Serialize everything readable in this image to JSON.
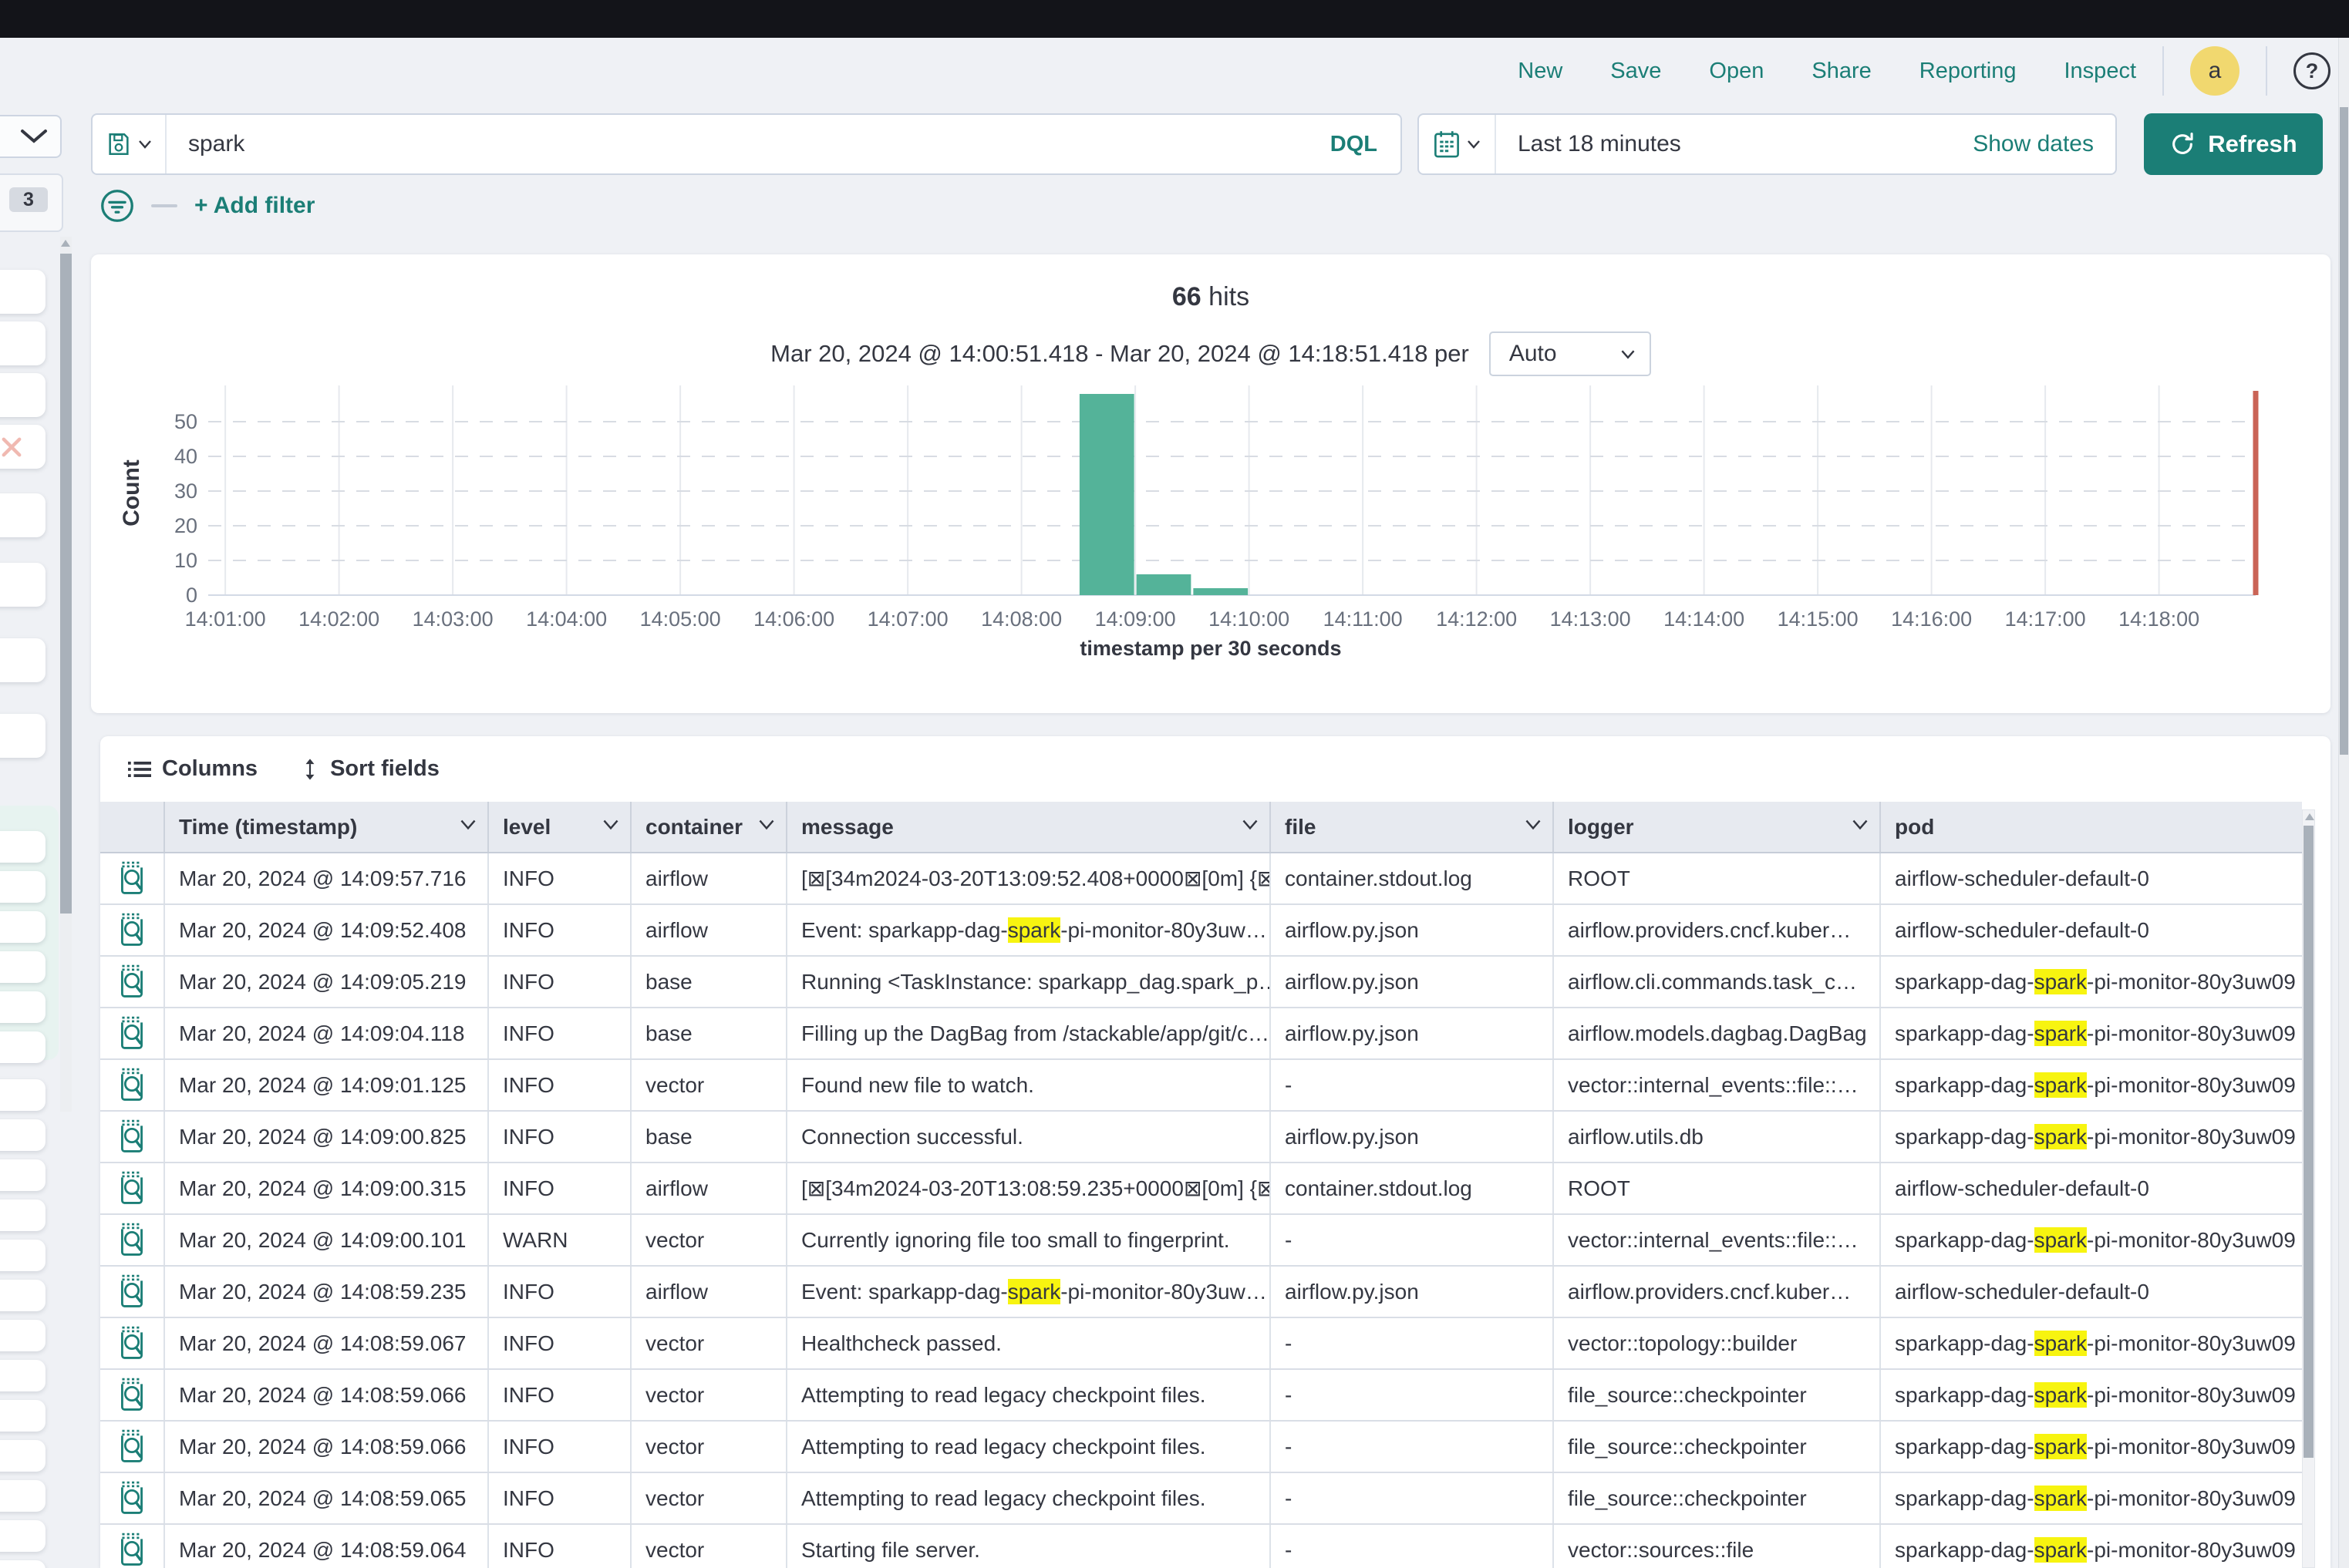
{
  "topnav": {
    "links": [
      "New",
      "Save",
      "Open",
      "Share",
      "Reporting",
      "Inspect"
    ],
    "avatar_initial": "a"
  },
  "sidebar": {
    "badge_count": "3"
  },
  "querybar": {
    "query": "spark",
    "language_label": "DQL",
    "time_range": "Last 18 minutes",
    "show_dates_label": "Show dates",
    "refresh_label": "Refresh",
    "add_filter_label": "+ Add filter"
  },
  "colors": {
    "accent": "#1b7e76",
    "bar": "#54B399",
    "time_marker": "#CA6456",
    "highlight": "#f7f410",
    "avatar": "#f1d86f"
  },
  "chart_data": {
    "type": "bar",
    "title_count": "66",
    "title_suffix": "hits",
    "range_label": "Mar 20, 2024 @ 14:00:51.418 - Mar 20, 2024 @ 14:18:51.418 per",
    "interval": "Auto",
    "ylabel": "Count",
    "xlabel": "timestamp per 30 seconds",
    "ylim": [
      0,
      60
    ],
    "y_ticks": [
      0,
      10,
      20,
      30,
      40,
      50
    ],
    "x_start": "14:00:51",
    "x_end": "14:18:51",
    "x_ticks": [
      "14:01:00",
      "14:02:00",
      "14:03:00",
      "14:04:00",
      "14:05:00",
      "14:06:00",
      "14:07:00",
      "14:08:00",
      "14:09:00",
      "14:10:00",
      "14:11:00",
      "14:12:00",
      "14:13:00",
      "14:14:00",
      "14:15:00",
      "14:16:00",
      "14:17:00",
      "14:18:00"
    ],
    "bucket_seconds": 30,
    "buckets": [
      {
        "time": "14:08:30",
        "count": 58
      },
      {
        "time": "14:09:00",
        "count": 6
      },
      {
        "time": "14:09:30",
        "count": 2
      }
    ],
    "now_marker_time": "14:18:51",
    "legend": "off",
    "grid": "on"
  },
  "table": {
    "toolbar": {
      "columns_label": "Columns",
      "sort_label": "Sort fields"
    },
    "headers": [
      {
        "key": "time",
        "label": "Time (timestamp)",
        "menu": true
      },
      {
        "key": "level",
        "label": "level",
        "menu": true
      },
      {
        "key": "container",
        "label": "container",
        "menu": true
      },
      {
        "key": "message",
        "label": "message",
        "menu": true
      },
      {
        "key": "file",
        "label": "file",
        "menu": true
      },
      {
        "key": "logger",
        "label": "logger",
        "menu": true
      },
      {
        "key": "pod",
        "label": "pod",
        "menu": false
      }
    ],
    "rows": [
      {
        "time": "Mar 20, 2024 @ 14:09:57.716",
        "level": "INFO",
        "container": "airflow",
        "message": "[⊠[34m2024-03-20T13:09:52.408+0000⊠[0m] {⊠…",
        "file": "container.stdout.log",
        "logger": "ROOT",
        "pod": "airflow-scheduler-default-0"
      },
      {
        "time": "Mar 20, 2024 @ 14:09:52.408",
        "level": "INFO",
        "container": "airflow",
        "message": "Event: sparkapp-dag-[[spark]]-pi-monitor-80y3uw…",
        "file": "airflow.py.json",
        "logger": "airflow.providers.cncf.kuber…",
        "pod": "airflow-scheduler-default-0"
      },
      {
        "time": "Mar 20, 2024 @ 14:09:05.219",
        "level": "INFO",
        "container": "base",
        "message": "Running <TaskInstance: sparkapp_dag.spark_p…",
        "file": "airflow.py.json",
        "logger": "airflow.cli.commands.task_c…",
        "pod": "sparkapp-dag-[[spark]]-pi-monitor-80y3uw09"
      },
      {
        "time": "Mar 20, 2024 @ 14:09:04.118",
        "level": "INFO",
        "container": "base",
        "message": "Filling up the DagBag from /stackable/app/git/c…",
        "file": "airflow.py.json",
        "logger": "airflow.models.dagbag.DagBag",
        "pod": "sparkapp-dag-[[spark]]-pi-monitor-80y3uw09"
      },
      {
        "time": "Mar 20, 2024 @ 14:09:01.125",
        "level": "INFO",
        "container": "vector",
        "message": "Found new file to watch.",
        "file": "-",
        "logger": "vector::internal_events::file::…",
        "pod": "sparkapp-dag-[[spark]]-pi-monitor-80y3uw09"
      },
      {
        "time": "Mar 20, 2024 @ 14:09:00.825",
        "level": "INFO",
        "container": "base",
        "message": "Connection successful.",
        "file": "airflow.py.json",
        "logger": "airflow.utils.db",
        "pod": "sparkapp-dag-[[spark]]-pi-monitor-80y3uw09"
      },
      {
        "time": "Mar 20, 2024 @ 14:09:00.315",
        "level": "INFO",
        "container": "airflow",
        "message": "[⊠[34m2024-03-20T13:08:59.235+0000⊠[0m] {⊠…",
        "file": "container.stdout.log",
        "logger": "ROOT",
        "pod": "airflow-scheduler-default-0"
      },
      {
        "time": "Mar 20, 2024 @ 14:09:00.101",
        "level": "WARN",
        "container": "vector",
        "message": "Currently ignoring file too small to fingerprint.",
        "file": "-",
        "logger": "vector::internal_events::file::…",
        "pod": "sparkapp-dag-[[spark]]-pi-monitor-80y3uw09"
      },
      {
        "time": "Mar 20, 2024 @ 14:08:59.235",
        "level": "INFO",
        "container": "airflow",
        "message": "Event: sparkapp-dag-[[spark]]-pi-monitor-80y3uw…",
        "file": "airflow.py.json",
        "logger": "airflow.providers.cncf.kuber…",
        "pod": "airflow-scheduler-default-0"
      },
      {
        "time": "Mar 20, 2024 @ 14:08:59.067",
        "level": "INFO",
        "container": "vector",
        "message": "Healthcheck passed.",
        "file": "-",
        "logger": "vector::topology::builder",
        "pod": "sparkapp-dag-[[spark]]-pi-monitor-80y3uw09"
      },
      {
        "time": "Mar 20, 2024 @ 14:08:59.066",
        "level": "INFO",
        "container": "vector",
        "message": "Attempting to read legacy checkpoint files.",
        "file": "-",
        "logger": "file_source::checkpointer",
        "pod": "sparkapp-dag-[[spark]]-pi-monitor-80y3uw09"
      },
      {
        "time": "Mar 20, 2024 @ 14:08:59.066",
        "level": "INFO",
        "container": "vector",
        "message": "Attempting to read legacy checkpoint files.",
        "file": "-",
        "logger": "file_source::checkpointer",
        "pod": "sparkapp-dag-[[spark]]-pi-monitor-80y3uw09"
      },
      {
        "time": "Mar 20, 2024 @ 14:08:59.065",
        "level": "INFO",
        "container": "vector",
        "message": "Attempting to read legacy checkpoint files.",
        "file": "-",
        "logger": "file_source::checkpointer",
        "pod": "sparkapp-dag-[[spark]]-pi-monitor-80y3uw09"
      },
      {
        "time": "Mar 20, 2024 @ 14:08:59.064",
        "level": "INFO",
        "container": "vector",
        "message": "Starting file server.",
        "file": "-",
        "logger": "vector::sources::file",
        "pod": "sparkapp-dag-[[spark]]-pi-monitor-80y3uw09"
      }
    ]
  }
}
